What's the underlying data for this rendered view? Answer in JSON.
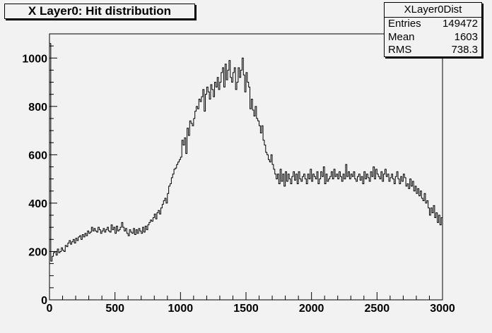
{
  "chart_data": {
    "type": "histogram",
    "title": "X Layer0: Hit distribution",
    "xlim": [
      0,
      3000
    ],
    "ylim": [
      0,
      1100
    ],
    "x_ticks": [
      0,
      500,
      1000,
      1500,
      2000,
      2500,
      3000
    ],
    "y_ticks": [
      0,
      200,
      400,
      600,
      800,
      1000
    ],
    "x_tick_labels": [
      "0",
      "500",
      "1000",
      "1500",
      "2000",
      "2500",
      "3000"
    ],
    "y_tick_labels": [
      "0",
      "200",
      "400",
      "600",
      "800",
      "1000"
    ],
    "bin_width": 10,
    "values": [
      1060,
      160,
      180,
      195,
      200,
      185,
      210,
      195,
      200,
      215,
      205,
      200,
      225,
      220,
      235,
      245,
      230,
      240,
      250,
      235,
      255,
      245,
      260,
      265,
      250,
      270,
      260,
      275,
      265,
      285,
      275,
      280,
      300,
      285,
      295,
      285,
      280,
      300,
      290,
      275,
      285,
      295,
      280,
      290,
      300,
      285,
      280,
      310,
      290,
      300,
      275,
      305,
      285,
      290,
      300,
      320,
      300,
      285,
      295,
      275,
      265,
      290,
      280,
      275,
      295,
      270,
      290,
      275,
      295,
      285,
      275,
      300,
      280,
      305,
      290,
      310,
      320,
      330,
      325,
      340,
      355,
      335,
      360,
      370,
      355,
      380,
      395,
      410,
      420,
      400,
      440,
      470,
      480,
      505,
      520,
      540,
      545,
      560,
      570,
      580,
      590,
      660,
      640,
      670,
      605,
      710,
      680,
      740,
      730,
      720,
      750,
      780,
      800,
      790,
      830,
      820,
      840,
      870,
      780,
      850,
      880,
      860,
      830,
      890,
      870,
      840,
      900,
      880,
      920,
      870,
      900,
      940,
      960,
      880,
      975,
      910,
      950,
      990,
      920,
      900,
      940,
      960,
      870,
      900,
      960,
      920,
      950,
      1000,
      930,
      860,
      940,
      900,
      880,
      790,
      830,
      785,
      760,
      800,
      750,
      740,
      720,
      690,
      720,
      660,
      640,
      610,
      600,
      580,
      570,
      600,
      560,
      540,
      520,
      500,
      520,
      480,
      540,
      490,
      520,
      470,
      530,
      490,
      520,
      500,
      480,
      510,
      530,
      495,
      520,
      480,
      530,
      500,
      490,
      510,
      520,
      500,
      480,
      520,
      500,
      540,
      490,
      520,
      510,
      500,
      530,
      480,
      500,
      530,
      510,
      550,
      480,
      520,
      490,
      500,
      510,
      530,
      500,
      540,
      510,
      520,
      500,
      530,
      510,
      490,
      520,
      500,
      560,
      510,
      530,
      500,
      520,
      510,
      530,
      500,
      490,
      510,
      520,
      495,
      510,
      480,
      530,
      500,
      520,
      505,
      490,
      530,
      510,
      550,
      500,
      540,
      520,
      510,
      500,
      530,
      490,
      520,
      540,
      510,
      520,
      490,
      505,
      520,
      500,
      480,
      510,
      530,
      500,
      480,
      510,
      490,
      520,
      505,
      470,
      480,
      460,
      500,
      470,
      490,
      450,
      470,
      440,
      460,
      430,
      450,
      420,
      410,
      440,
      400,
      410,
      380,
      350,
      380,
      360,
      390,
      340,
      360,
      320,
      350,
      310,
      340
    ]
  },
  "stats": {
    "name": "XLayer0Dist",
    "entries_label": "Entries",
    "entries_value": "149472",
    "mean_label": "Mean",
    "mean_value": "1603",
    "rms_label": "RMS",
    "rms_value": "738.3"
  },
  "colors": {
    "background": "#f2f2f2",
    "line": "#000000"
  }
}
